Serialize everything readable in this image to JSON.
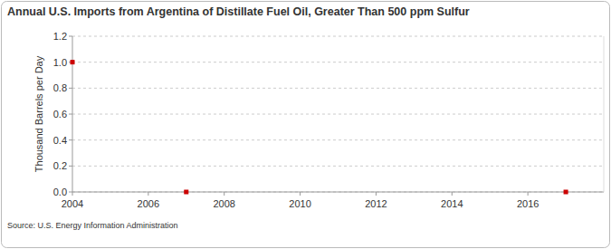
{
  "chart_data": {
    "type": "line",
    "title": "Annual U.S. Imports from Argentina of Distillate Fuel Oil, Greater Than 500 ppm Sulfur",
    "y_label": "Thousand Barrels per Day",
    "source": "Source: U.S. Energy Information Administration",
    "x": [
      2004,
      2005,
      2006,
      2007,
      2008,
      2009,
      2010,
      2011,
      2012,
      2013,
      2014,
      2015,
      2016,
      2017
    ],
    "series": [
      {
        "name": "Argentina",
        "color": "#cc0000",
        "marker": "square",
        "values": [
          1.0,
          null,
          null,
          0,
          null,
          null,
          null,
          null,
          null,
          null,
          null,
          null,
          null,
          0
        ]
      }
    ],
    "xlim": [
      2004,
      2018
    ],
    "xticks": [
      2004,
      2006,
      2008,
      2010,
      2012,
      2014,
      2016
    ],
    "ylim": [
      0,
      1.2
    ],
    "yticks": [
      {
        "value": 0,
        "label": "0.0"
      },
      0.2,
      0.4,
      0.6,
      0.8,
      {
        "value": 1,
        "label": "1.0"
      },
      1.2
    ],
    "grid": true
  }
}
